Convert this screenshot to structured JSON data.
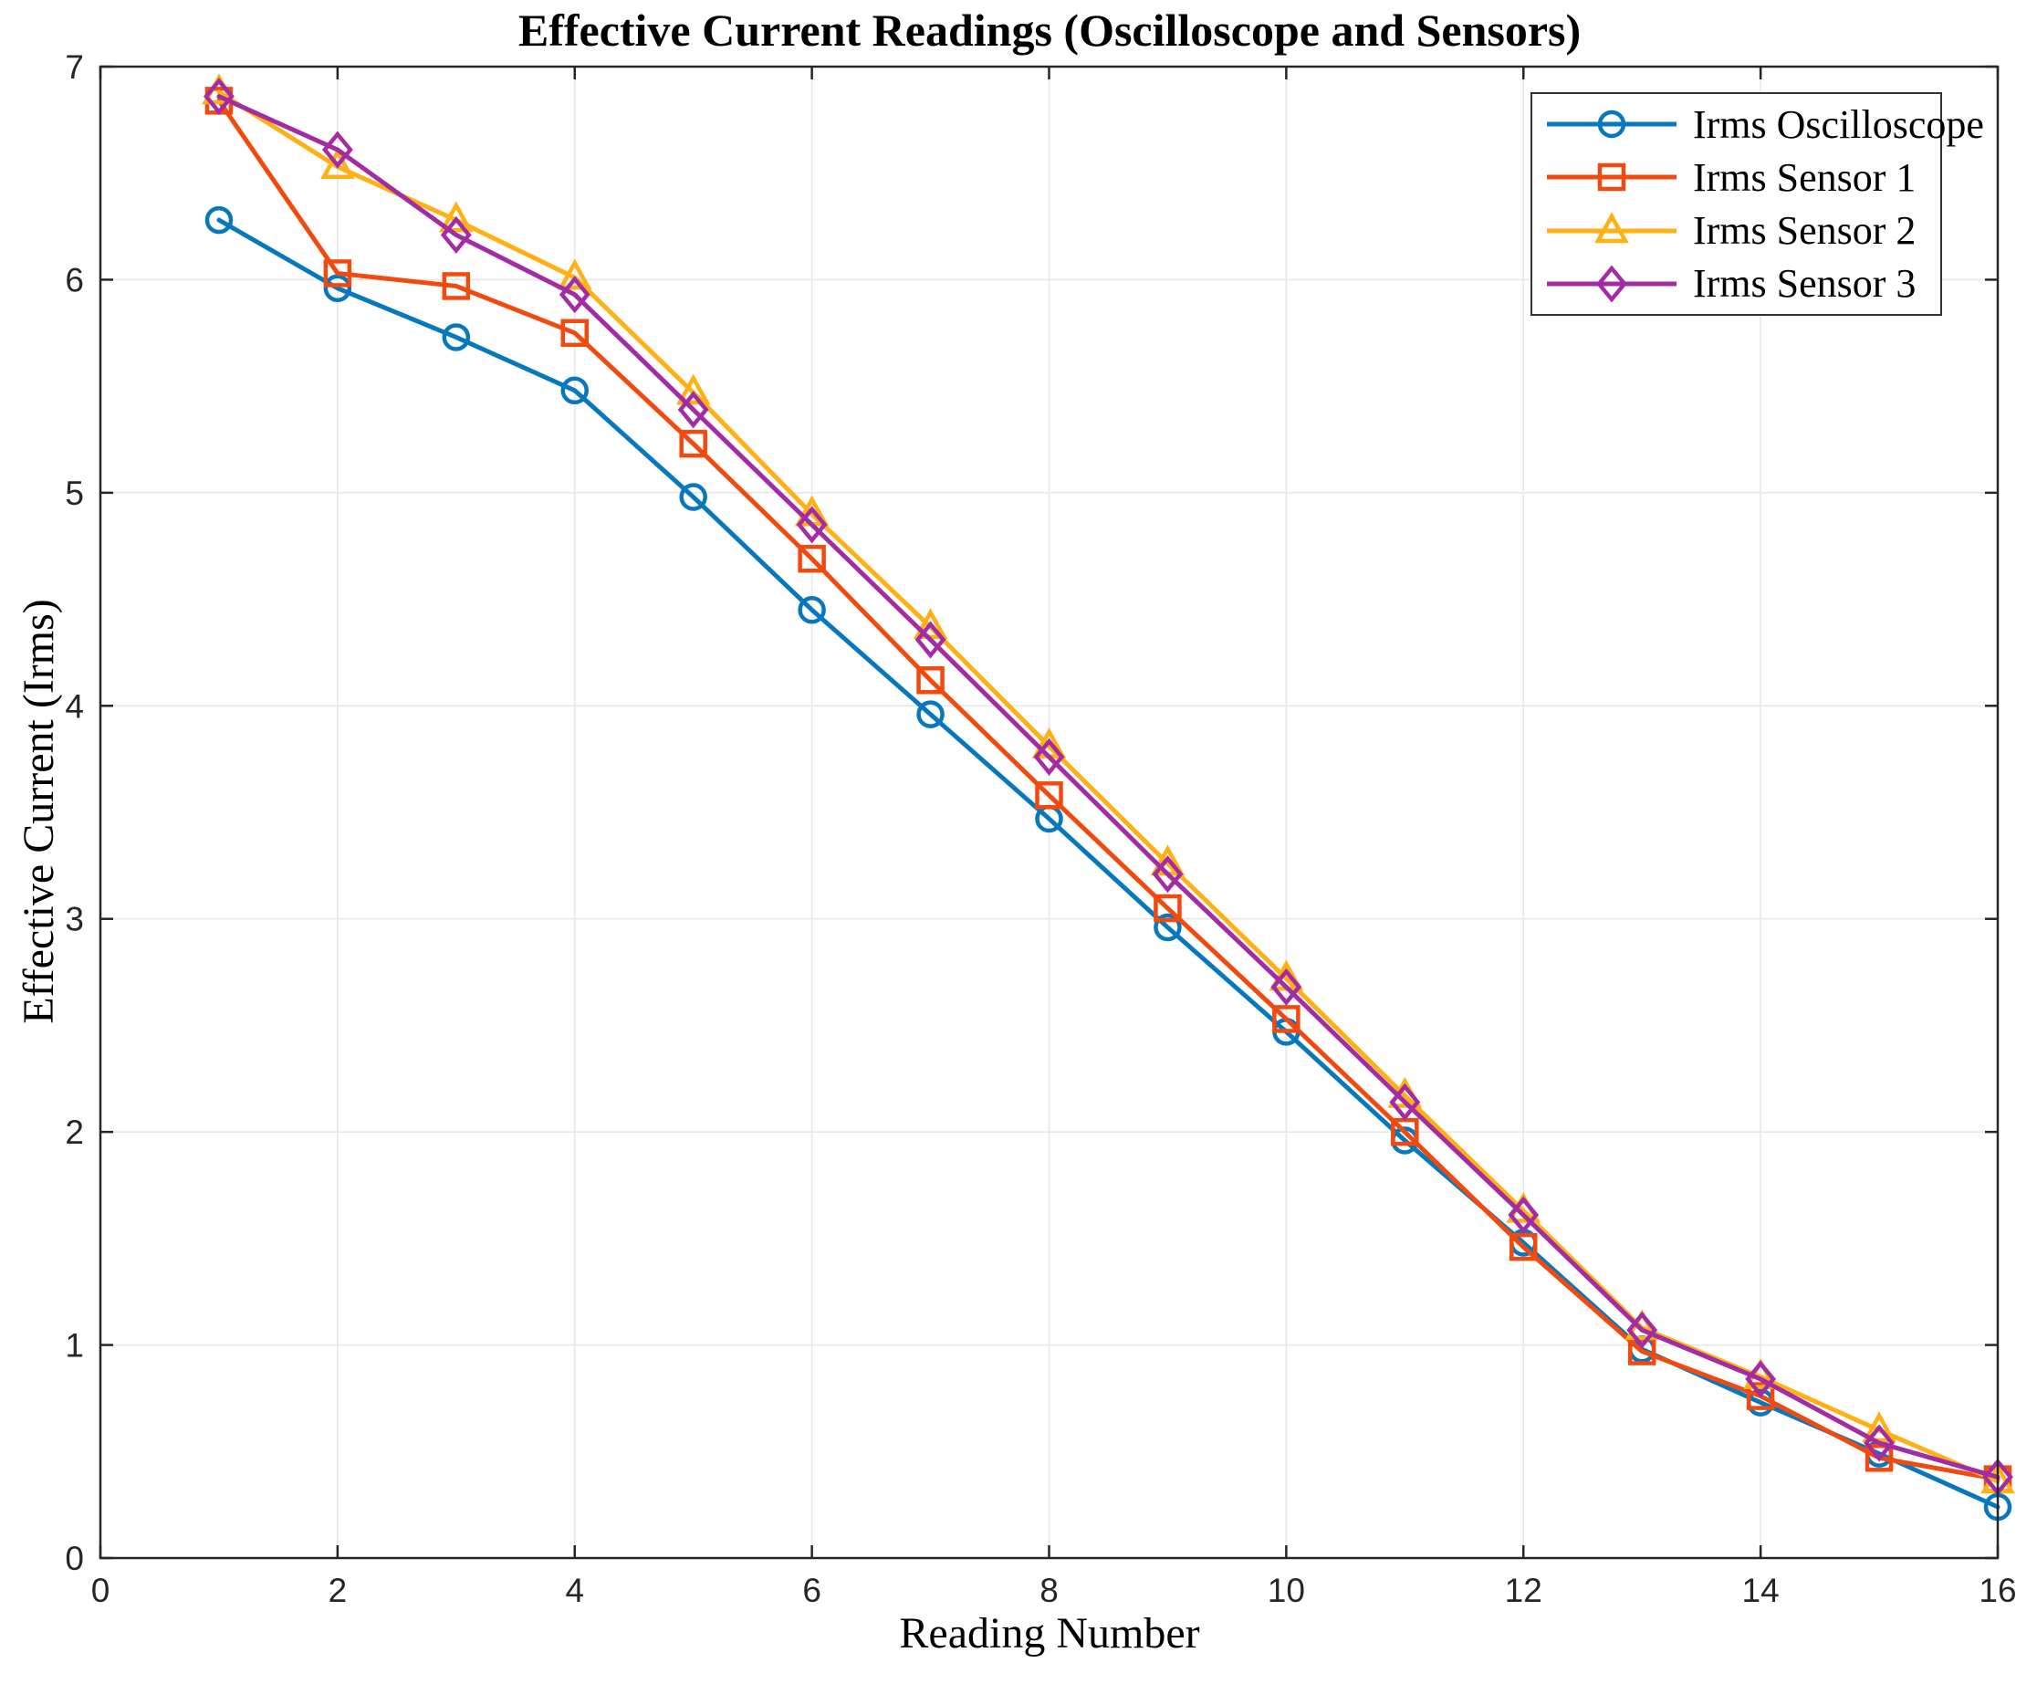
{
  "title": "Effective Current Readings (Oscilloscope and Sensors)",
  "colors": {
    "axis": "#262626",
    "grid": "#e7e7e7",
    "background": "#ffffff",
    "blue": "#0878be",
    "orange": "#f24a0e",
    "yellow": "#ffb013",
    "purple": "#a32ba3"
  },
  "chart_data": {
    "type": "line",
    "title": "Effective Current Readings (Oscilloscope and Sensors)",
    "xlabel": "Reading Number",
    "ylabel": "Effective Current (Irms)",
    "xlim": [
      0,
      16
    ],
    "ylim": [
      0,
      7
    ],
    "xticks": [
      0,
      2,
      4,
      6,
      8,
      10,
      12,
      14,
      16
    ],
    "yticks": [
      0,
      1,
      2,
      3,
      4,
      5,
      6,
      7
    ],
    "grid": true,
    "legend_position": "top-right",
    "x": [
      1,
      2,
      3,
      4,
      5,
      6,
      7,
      8,
      9,
      10,
      11,
      12,
      13,
      14,
      15,
      16
    ],
    "series": [
      {
        "name": "Irms Oscilloscope",
        "color": "#0878be",
        "marker": "circle",
        "values": [
          6.28,
          5.96,
          5.73,
          5.48,
          4.98,
          4.45,
          3.96,
          3.47,
          2.96,
          2.47,
          1.96,
          1.48,
          0.98,
          0.73,
          0.49,
          0.24
        ]
      },
      {
        "name": "Irms Sensor 1",
        "color": "#f24a0e",
        "marker": "square",
        "values": [
          6.84,
          6.03,
          5.97,
          5.75,
          5.23,
          4.69,
          4.12,
          3.58,
          3.05,
          2.53,
          2.0,
          1.46,
          0.97,
          0.76,
          0.47,
          0.37
        ]
      },
      {
        "name": "Irms Sensor 2",
        "color": "#ffb013",
        "marker": "triangle",
        "values": [
          6.88,
          6.53,
          6.28,
          6.01,
          5.47,
          4.9,
          4.37,
          3.81,
          3.26,
          2.72,
          2.17,
          1.63,
          1.08,
          0.85,
          0.6,
          0.36
        ]
      },
      {
        "name": "Irms Sensor 3",
        "color": "#a32ba3",
        "marker": "diamond",
        "values": [
          6.86,
          6.61,
          6.21,
          5.93,
          5.39,
          4.85,
          4.31,
          3.76,
          3.21,
          2.68,
          2.14,
          1.61,
          1.07,
          0.84,
          0.54,
          0.38
        ]
      }
    ]
  }
}
